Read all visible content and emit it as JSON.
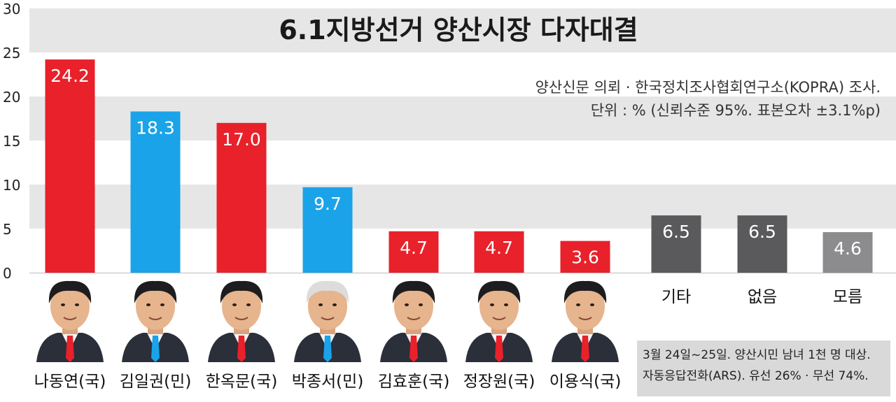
{
  "chart_data": {
    "type": "bar",
    "title": "6.1지방선거 양산시장 다자대결",
    "source_lines": [
      "양산신문 의뢰 · 한국정치조사협회연구소(KOPRA) 조사.",
      "단위 : % (신뢰수준 95%. 표본오차 ±3.1%p)"
    ],
    "categories": [
      "나동연(국)",
      "김일권(민)",
      "한옥문(국)",
      "박종서(민)",
      "김효훈(국)",
      "정장원(국)",
      "이용식(국)",
      "기타",
      "없음",
      "모름"
    ],
    "values": [
      24.2,
      18.3,
      17.0,
      9.7,
      4.7,
      4.7,
      3.6,
      6.5,
      6.5,
      4.6
    ],
    "value_labels": [
      "24.2",
      "18.3",
      "17.0",
      "9.7",
      "4.7",
      "4.7",
      "3.6",
      "6.5",
      "6.5",
      "4.6"
    ],
    "party": [
      "국",
      "민",
      "국",
      "민",
      "국",
      "국",
      "국",
      "",
      "",
      ""
    ],
    "bar_colors": [
      "#e8212b",
      "#1aa3e8",
      "#e8212b",
      "#1aa3e8",
      "#e8212b",
      "#e8212b",
      "#e8212b",
      "#5a5a5c",
      "#5a5a5c",
      "#8c8c8e"
    ],
    "y_ticks": [
      "0",
      "5",
      "10",
      "15",
      "20",
      "25",
      "30"
    ],
    "ylim": [
      0,
      30
    ],
    "grid": "alternating horizontal bands",
    "footnote_lines": [
      "3월 24일~25일. 양산시민 남녀 1천 명 대상.",
      "자동응답전화(ARS). 유선 26% · 무선 74%."
    ]
  },
  "colors": {
    "party_red": "#e8212b",
    "party_blue": "#1aa3e8",
    "band_gray": "#e6e6e6",
    "dark_gray": "#5a5a5c",
    "light_gray": "#8c8c8e"
  }
}
